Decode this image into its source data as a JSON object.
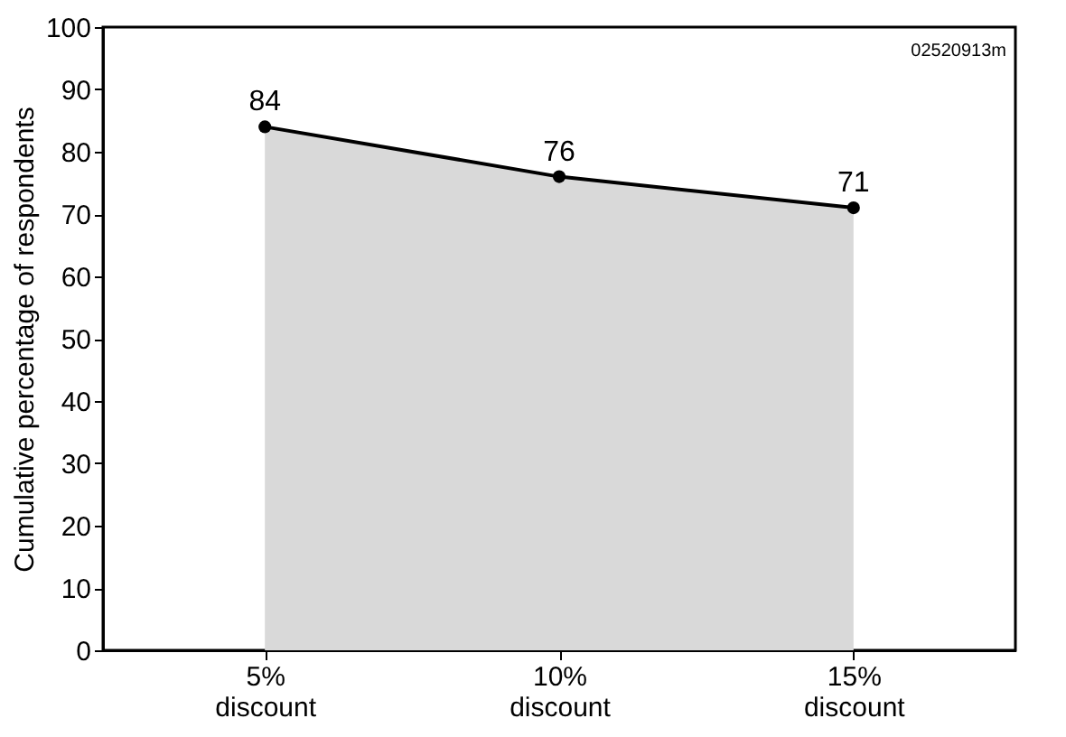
{
  "chart_data": {
    "type": "area",
    "ylabel": "Cumulative percentage of respondents",
    "categories": [
      "5%\ndiscount",
      "10%\ndiscount",
      "15%\ndiscount"
    ],
    "series": [
      {
        "color": "#d9d9d9",
        "values": [
          84,
          76,
          71
        ]
      }
    ],
    "ylim": [
      0,
      100
    ],
    "yticks": [
      0,
      10,
      20,
      30,
      40,
      50,
      60,
      70,
      80,
      90,
      100
    ],
    "marker": "circle",
    "data_labels": true,
    "grid": false,
    "annotations": [
      "02520913m"
    ]
  }
}
